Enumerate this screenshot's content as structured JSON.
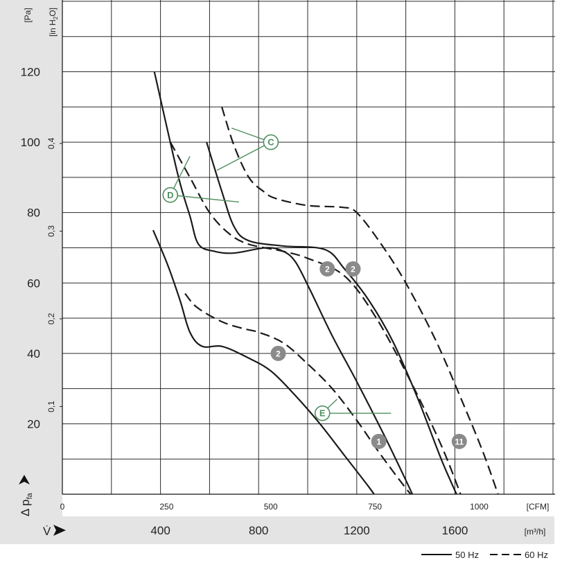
{
  "chart_data": {
    "type": "line",
    "y_axis": {
      "unit": "[Pa]",
      "label": "Δ p",
      "label_sub": "fa",
      "range": [
        0,
        120
      ],
      "ticks": [
        "120",
        "100",
        "80",
        "60",
        "40",
        "20"
      ]
    },
    "y_axis_secondary": {
      "unit_prefix": "[in H",
      "unit_sub": "2",
      "unit_suffix": "O]",
      "ticks": [
        "0,4",
        "0,3",
        "0,2",
        "0,1"
      ]
    },
    "x_axis_cfm": {
      "unit": "[CFM]",
      "ticks": [
        "0",
        "250",
        "500",
        "750",
        "1000"
      ]
    },
    "x_axis_m3h": {
      "label": "V̇",
      "unit": "[m³/h]",
      "range": [
        0,
        1950
      ],
      "ticks": [
        "400",
        "800",
        "1200",
        "1600"
      ]
    },
    "grid": true,
    "legend": {
      "position": "bottom-right",
      "solid_label": "50 Hz",
      "dashed_label": "60 Hz"
    },
    "series": [
      {
        "frequency": "50 Hz",
        "style": "solid",
        "points": [
          [
            375,
            120
          ],
          [
            470,
            91
          ],
          [
            520,
            79
          ],
          [
            555,
            71
          ],
          [
            620,
            69
          ],
          [
            700,
            68.5
          ],
          [
            830,
            70
          ],
          [
            900,
            69
          ],
          [
            950,
            66
          ],
          [
            1010,
            58
          ],
          [
            1100,
            45
          ],
          [
            1200,
            32
          ],
          [
            1310,
            17
          ],
          [
            1400,
            4
          ],
          [
            1460,
            -5
          ]
        ]
      },
      {
        "frequency": "50 Hz",
        "style": "solid",
        "points": [
          [
            588,
            100
          ],
          [
            650,
            86
          ],
          [
            700,
            76
          ],
          [
            760,
            72
          ],
          [
            900,
            70.5
          ],
          [
            1070,
            69.5
          ],
          [
            1150,
            64
          ],
          [
            1250,
            55
          ],
          [
            1350,
            43
          ],
          [
            1450,
            27
          ],
          [
            1550,
            9
          ],
          [
            1640,
            -5
          ]
        ]
      },
      {
        "frequency": "60 Hz",
        "style": "dashed",
        "points": [
          [
            440,
            100
          ],
          [
            520,
            90
          ],
          [
            600,
            80
          ],
          [
            680,
            74
          ],
          [
            760,
            71
          ],
          [
            900,
            69
          ],
          [
            1000,
            67
          ],
          [
            1150,
            62
          ],
          [
            1280,
            50
          ],
          [
            1420,
            32
          ],
          [
            1550,
            13
          ],
          [
            1650,
            -5
          ]
        ]
      },
      {
        "frequency": "60 Hz",
        "style": "dashed",
        "points": [
          [
            650,
            110
          ],
          [
            700,
            99
          ],
          [
            760,
            90
          ],
          [
            820,
            86
          ],
          [
            870,
            84
          ],
          [
            1000,
            82
          ],
          [
            1140,
            81.5
          ],
          [
            1200,
            80
          ],
          [
            1300,
            71
          ],
          [
            1400,
            60
          ],
          [
            1520,
            44
          ],
          [
            1620,
            28
          ],
          [
            1720,
            11
          ],
          [
            1800,
            -5
          ]
        ]
      },
      {
        "frequency": "50 Hz",
        "style": "solid",
        "points": [
          [
            370,
            75
          ],
          [
            430,
            65
          ],
          [
            480,
            55
          ],
          [
            520,
            46
          ],
          [
            570,
            42
          ],
          [
            650,
            42
          ],
          [
            750,
            39
          ],
          [
            850,
            35
          ],
          [
            950,
            28
          ],
          [
            1050,
            20
          ],
          [
            1150,
            11
          ],
          [
            1250,
            2
          ],
          [
            1300,
            -3
          ]
        ]
      },
      {
        "frequency": "60 Hz",
        "style": "dashed",
        "points": [
          [
            500,
            57
          ],
          [
            550,
            53
          ],
          [
            650,
            49
          ],
          [
            740,
            47
          ],
          [
            800,
            46
          ],
          [
            900,
            43
          ],
          [
            1000,
            37
          ],
          [
            1100,
            30
          ],
          [
            1200,
            21
          ],
          [
            1300,
            11
          ],
          [
            1420,
            0
          ],
          [
            1480,
            -4
          ]
        ]
      }
    ],
    "markers": [
      {
        "label": "2",
        "m3h": 1080,
        "pa": 64
      },
      {
        "label": "2",
        "m3h": 1185,
        "pa": 64
      },
      {
        "label": "2",
        "m3h": 880,
        "pa": 40
      },
      {
        "label": "1",
        "m3h": 1290,
        "pa": 15
      },
      {
        "label": "11",
        "m3h": 1618,
        "pa": 15
      }
    ],
    "callouts": [
      {
        "label": "C",
        "m3h": 850,
        "pa": 100
      },
      {
        "label": "D",
        "m3h": 440,
        "pa": 85
      },
      {
        "label": "E",
        "m3h": 1060,
        "pa": 23
      }
    ]
  }
}
